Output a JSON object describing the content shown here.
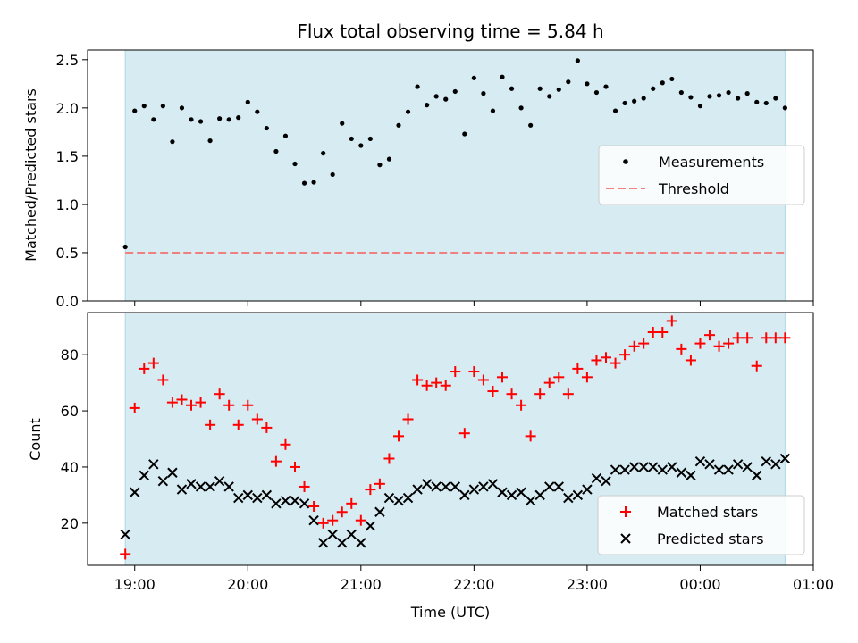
{
  "chart_data": [
    {
      "type": "scatter",
      "title": "Flux total observing time = 5.84 h",
      "ylabel": "Matched/Predicted stars",
      "xlabel": "",
      "ylim": [
        0,
        2.6
      ],
      "y_ticks": [
        0.0,
        0.5,
        1.0,
        1.5,
        2.0,
        2.5
      ],
      "y_tick_labels": [
        "0.0",
        "0.5",
        "1.0",
        "1.5",
        "2.0",
        "2.5"
      ],
      "shaded_span": {
        "start": "18:55",
        "end": "00:45",
        "color": "#add8e6"
      },
      "legend": {
        "position": "center-right",
        "entries": [
          "Measurements",
          "Threshold"
        ]
      },
      "threshold": {
        "name": "Threshold",
        "value": 0.5,
        "color": "#f08080",
        "style": "dashed"
      },
      "series": [
        {
          "name": "Measurements",
          "marker": "dot",
          "color": "#000000",
          "x": [
            "18:55",
            "19:00",
            "19:05",
            "19:10",
            "19:15",
            "19:20",
            "19:25",
            "19:30",
            "19:35",
            "19:40",
            "19:45",
            "19:50",
            "19:55",
            "20:00",
            "20:05",
            "20:10",
            "20:15",
            "20:20",
            "20:25",
            "20:30",
            "20:35",
            "20:40",
            "20:45",
            "20:50",
            "20:55",
            "21:00",
            "21:05",
            "21:10",
            "21:15",
            "21:20",
            "21:25",
            "21:30",
            "21:35",
            "21:40",
            "21:45",
            "21:50",
            "21:55",
            "22:00",
            "22:05",
            "22:10",
            "22:15",
            "22:20",
            "22:25",
            "22:30",
            "22:35",
            "22:40",
            "22:45",
            "22:50",
            "22:55",
            "23:00",
            "23:05",
            "23:10",
            "23:15",
            "23:20",
            "23:25",
            "23:30",
            "23:35",
            "23:40",
            "23:45",
            "23:50",
            "23:55",
            "00:00",
            "00:05",
            "00:10",
            "00:15",
            "00:20",
            "00:25",
            "00:30",
            "00:35",
            "00:40",
            "00:45"
          ],
          "y": [
            0.56,
            1.97,
            2.02,
            1.88,
            2.02,
            1.65,
            2.0,
            1.88,
            1.86,
            1.66,
            1.89,
            1.88,
            1.9,
            2.06,
            1.96,
            1.79,
            1.55,
            1.71,
            1.42,
            1.22,
            1.23,
            1.53,
            1.31,
            1.84,
            1.68,
            1.61,
            1.68,
            1.41,
            1.47,
            1.82,
            1.96,
            2.22,
            2.03,
            2.12,
            2.09,
            2.17,
            1.73,
            2.31,
            2.15,
            1.97,
            2.32,
            2.2,
            2.0,
            1.82,
            2.2,
            2.12,
            2.19,
            2.27,
            2.49,
            2.25,
            2.16,
            2.22,
            1.97,
            2.05,
            2.07,
            2.1,
            2.2,
            2.26,
            2.3,
            2.16,
            2.11,
            2.02,
            2.12,
            2.13,
            2.16,
            2.1,
            2.15,
            2.06,
            2.05,
            2.1,
            2.0
          ]
        }
      ]
    },
    {
      "type": "scatter",
      "title": "",
      "ylabel": "Count",
      "xlabel": "Time (UTC)",
      "xlim": [
        "18:35",
        "01:00"
      ],
      "ylim": [
        5,
        95
      ],
      "x_ticks": [
        "19:00",
        "20:00",
        "21:00",
        "22:00",
        "23:00",
        "00:00",
        "01:00"
      ],
      "y_ticks": [
        20,
        40,
        60,
        80
      ],
      "y_tick_labels": [
        "20",
        "40",
        "60",
        "80"
      ],
      "shaded_span": {
        "start": "18:55",
        "end": "00:45",
        "color": "#add8e6"
      },
      "legend": {
        "position": "bottom-right",
        "entries": [
          "Matched stars",
          "Predicted stars"
        ]
      },
      "series": [
        {
          "name": "Matched stars",
          "marker": "plus",
          "color": "#ff0000",
          "x": [
            "18:55",
            "19:00",
            "19:05",
            "19:10",
            "19:15",
            "19:20",
            "19:25",
            "19:30",
            "19:35",
            "19:40",
            "19:45",
            "19:50",
            "19:55",
            "20:00",
            "20:05",
            "20:10",
            "20:15",
            "20:20",
            "20:25",
            "20:30",
            "20:35",
            "20:40",
            "20:45",
            "20:50",
            "20:55",
            "21:00",
            "21:05",
            "21:10",
            "21:15",
            "21:20",
            "21:25",
            "21:30",
            "21:35",
            "21:40",
            "21:45",
            "21:50",
            "21:55",
            "22:00",
            "22:05",
            "22:10",
            "22:15",
            "22:20",
            "22:25",
            "22:30",
            "22:35",
            "22:40",
            "22:45",
            "22:50",
            "22:55",
            "23:00",
            "23:05",
            "23:10",
            "23:15",
            "23:20",
            "23:25",
            "23:30",
            "23:35",
            "23:40",
            "23:45",
            "23:50",
            "23:55",
            "00:00",
            "00:05",
            "00:10",
            "00:15",
            "00:20",
            "00:25",
            "00:30",
            "00:35",
            "00:40",
            "00:45"
          ],
          "y": [
            9,
            61,
            75,
            77,
            71,
            63,
            64,
            62,
            63,
            55,
            66,
            62,
            55,
            62,
            57,
            54,
            42,
            48,
            40,
            33,
            26,
            20,
            21,
            24,
            27,
            21,
            32,
            34,
            43,
            51,
            57,
            71,
            69,
            70,
            69,
            74,
            52,
            74,
            71,
            67,
            72,
            66,
            62,
            51,
            66,
            70,
            72,
            66,
            75,
            72,
            78,
            79,
            77,
            80,
            83,
            84,
            88,
            88,
            92,
            82,
            78,
            84,
            87,
            83,
            84,
            86,
            86,
            76,
            86,
            86,
            86
          ]
        },
        {
          "name": "Predicted stars",
          "marker": "x",
          "color": "#000000",
          "x": [
            "18:55",
            "19:00",
            "19:05",
            "19:10",
            "19:15",
            "19:20",
            "19:25",
            "19:30",
            "19:35",
            "19:40",
            "19:45",
            "19:50",
            "19:55",
            "20:00",
            "20:05",
            "20:10",
            "20:15",
            "20:20",
            "20:25",
            "20:30",
            "20:35",
            "20:40",
            "20:45",
            "20:50",
            "20:55",
            "21:00",
            "21:05",
            "21:10",
            "21:15",
            "21:20",
            "21:25",
            "21:30",
            "21:35",
            "21:40",
            "21:45",
            "21:50",
            "21:55",
            "22:00",
            "22:05",
            "22:10",
            "22:15",
            "22:20",
            "22:25",
            "22:30",
            "22:35",
            "22:40",
            "22:45",
            "22:50",
            "22:55",
            "23:00",
            "23:05",
            "23:10",
            "23:15",
            "23:20",
            "23:25",
            "23:30",
            "23:35",
            "23:40",
            "23:45",
            "23:50",
            "23:55",
            "00:00",
            "00:05",
            "00:10",
            "00:15",
            "00:20",
            "00:25",
            "00:30",
            "00:35",
            "00:40",
            "00:45"
          ],
          "y": [
            16,
            31,
            37,
            41,
            35,
            38,
            32,
            34,
            33,
            33,
            35,
            33,
            29,
            30,
            29,
            30,
            27,
            28,
            28,
            27,
            21,
            13,
            16,
            13,
            16,
            13,
            19,
            24,
            29,
            28,
            29,
            32,
            34,
            33,
            33,
            33,
            30,
            32,
            33,
            34,
            31,
            30,
            31,
            28,
            30,
            33,
            33,
            29,
            30,
            32,
            36,
            35,
            39,
            39,
            40,
            40,
            40,
            39,
            40,
            38,
            37,
            42,
            41,
            39,
            39,
            41,
            40,
            37,
            42,
            41,
            43
          ]
        }
      ]
    }
  ]
}
